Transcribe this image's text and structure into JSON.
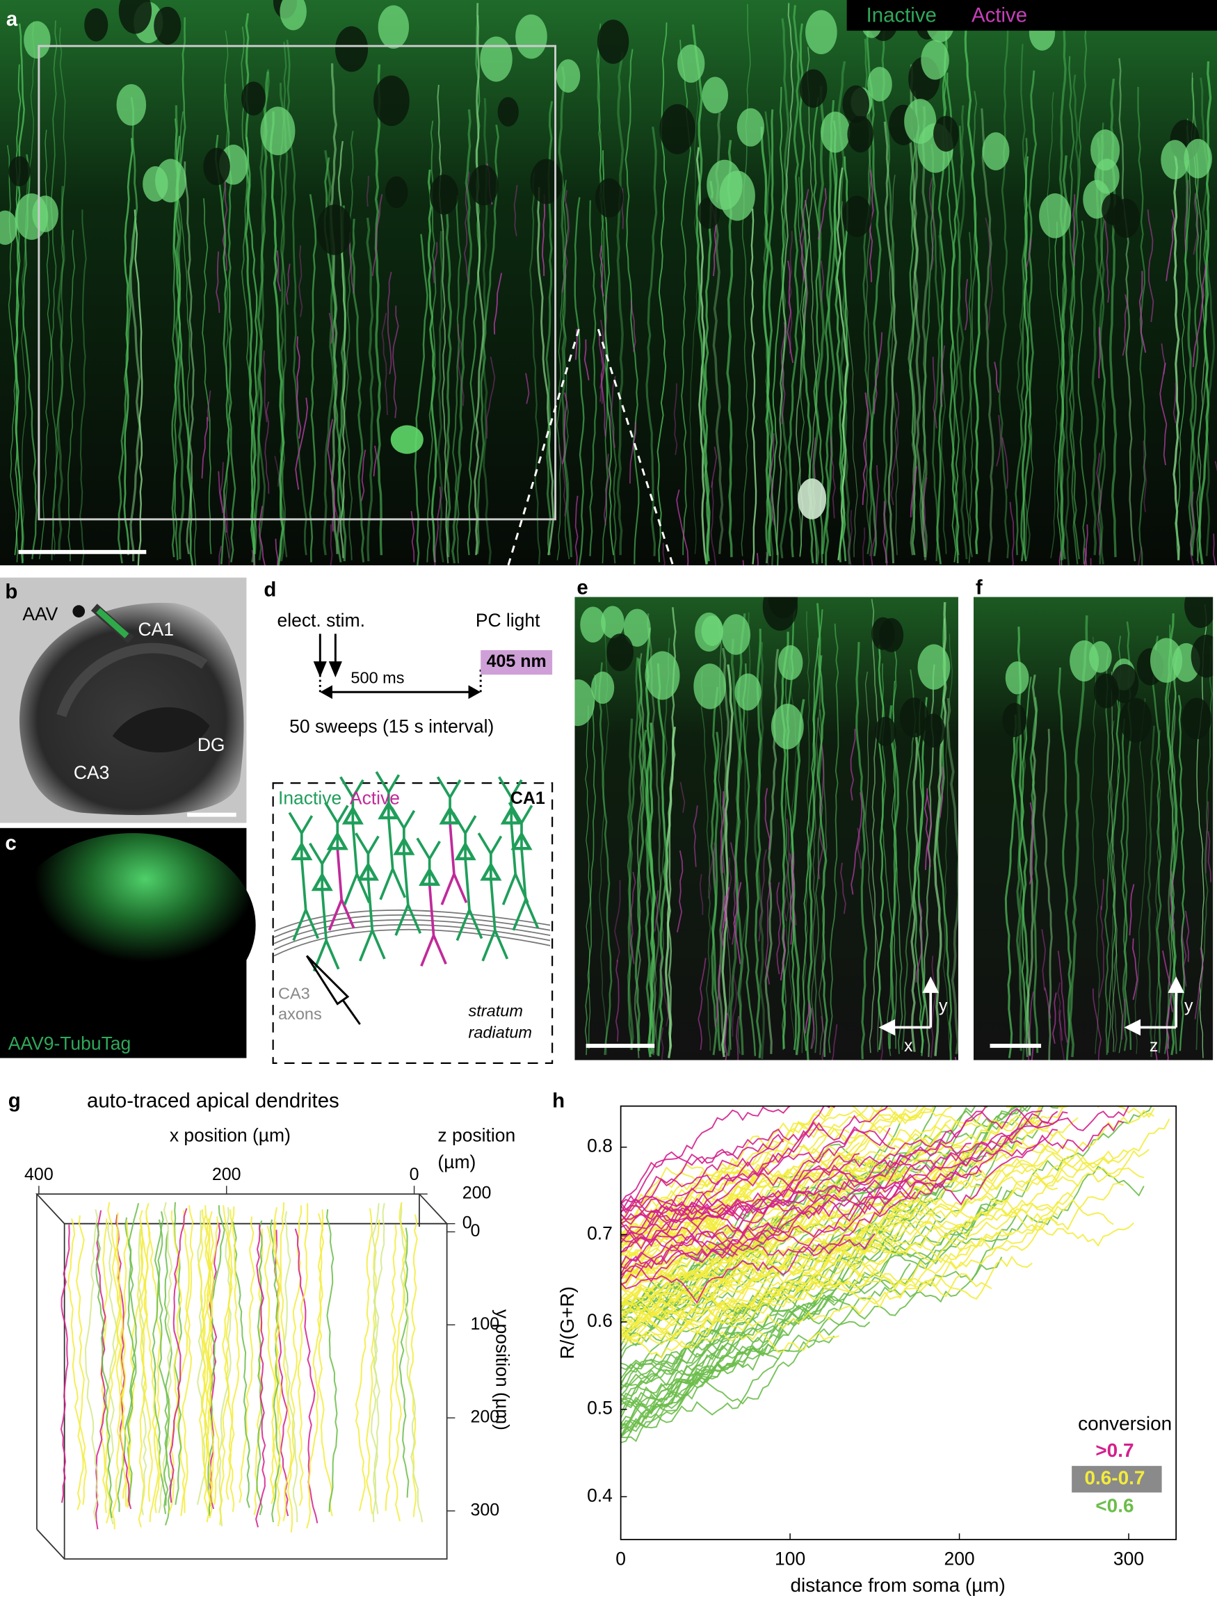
{
  "panels": {
    "a": {
      "label": "a",
      "legend": [
        "Inactive",
        "Active"
      ]
    },
    "b": {
      "label": "b",
      "texts": [
        "AAV",
        "CA1",
        "CA3",
        "DG"
      ]
    },
    "c": {
      "label": "c",
      "caption": "AAV9-TubuTag"
    },
    "d": {
      "label": "d",
      "stim": "elect. stim.",
      "light": "PC light",
      "wavelength": "405 nm",
      "interval": "500 ms",
      "sweeps": "50 sweeps (15 s interval)",
      "schematic": {
        "inactive": "Inactive",
        "active": "Active",
        "region": "CA1",
        "axons": [
          "CA3",
          "axons"
        ],
        "layer": [
          "stratum",
          "radiatum"
        ]
      }
    },
    "e": {
      "label": "e",
      "axes": [
        "y",
        "x"
      ]
    },
    "f": {
      "label": "f",
      "axes": [
        "y",
        "z"
      ]
    },
    "g": {
      "label": "g",
      "title": "auto-traced apical dendrites",
      "x_label": "x position (µm)",
      "z_label": [
        "z position",
        "(µm)"
      ],
      "y_label": "y position (µm)",
      "xticks": [
        400,
        200,
        0
      ],
      "zticks": [
        200,
        0
      ],
      "yticks": [
        0,
        100,
        200,
        300
      ]
    },
    "h": {
      "label": "h",
      "type": "line",
      "x_label": "distance from soma (µm)",
      "y_label": "R/(G+R)",
      "xlim": [
        0,
        328
      ],
      "ylim": [
        0.351,
        0.847
      ],
      "xticks": [
        0,
        100,
        200,
        300
      ],
      "yticks": [
        0.4,
        0.5,
        0.6,
        0.7,
        0.8
      ],
      "legend": {
        "title": "conversion",
        "entries": [
          {
            "label": ">0.7",
            "color": "#d41f8c"
          },
          {
            "label": "0.6-0.7",
            "color": "#f3ec3c"
          },
          {
            "label": "<0.6",
            "color": "#6cbd4a"
          }
        ]
      }
    }
  }
}
